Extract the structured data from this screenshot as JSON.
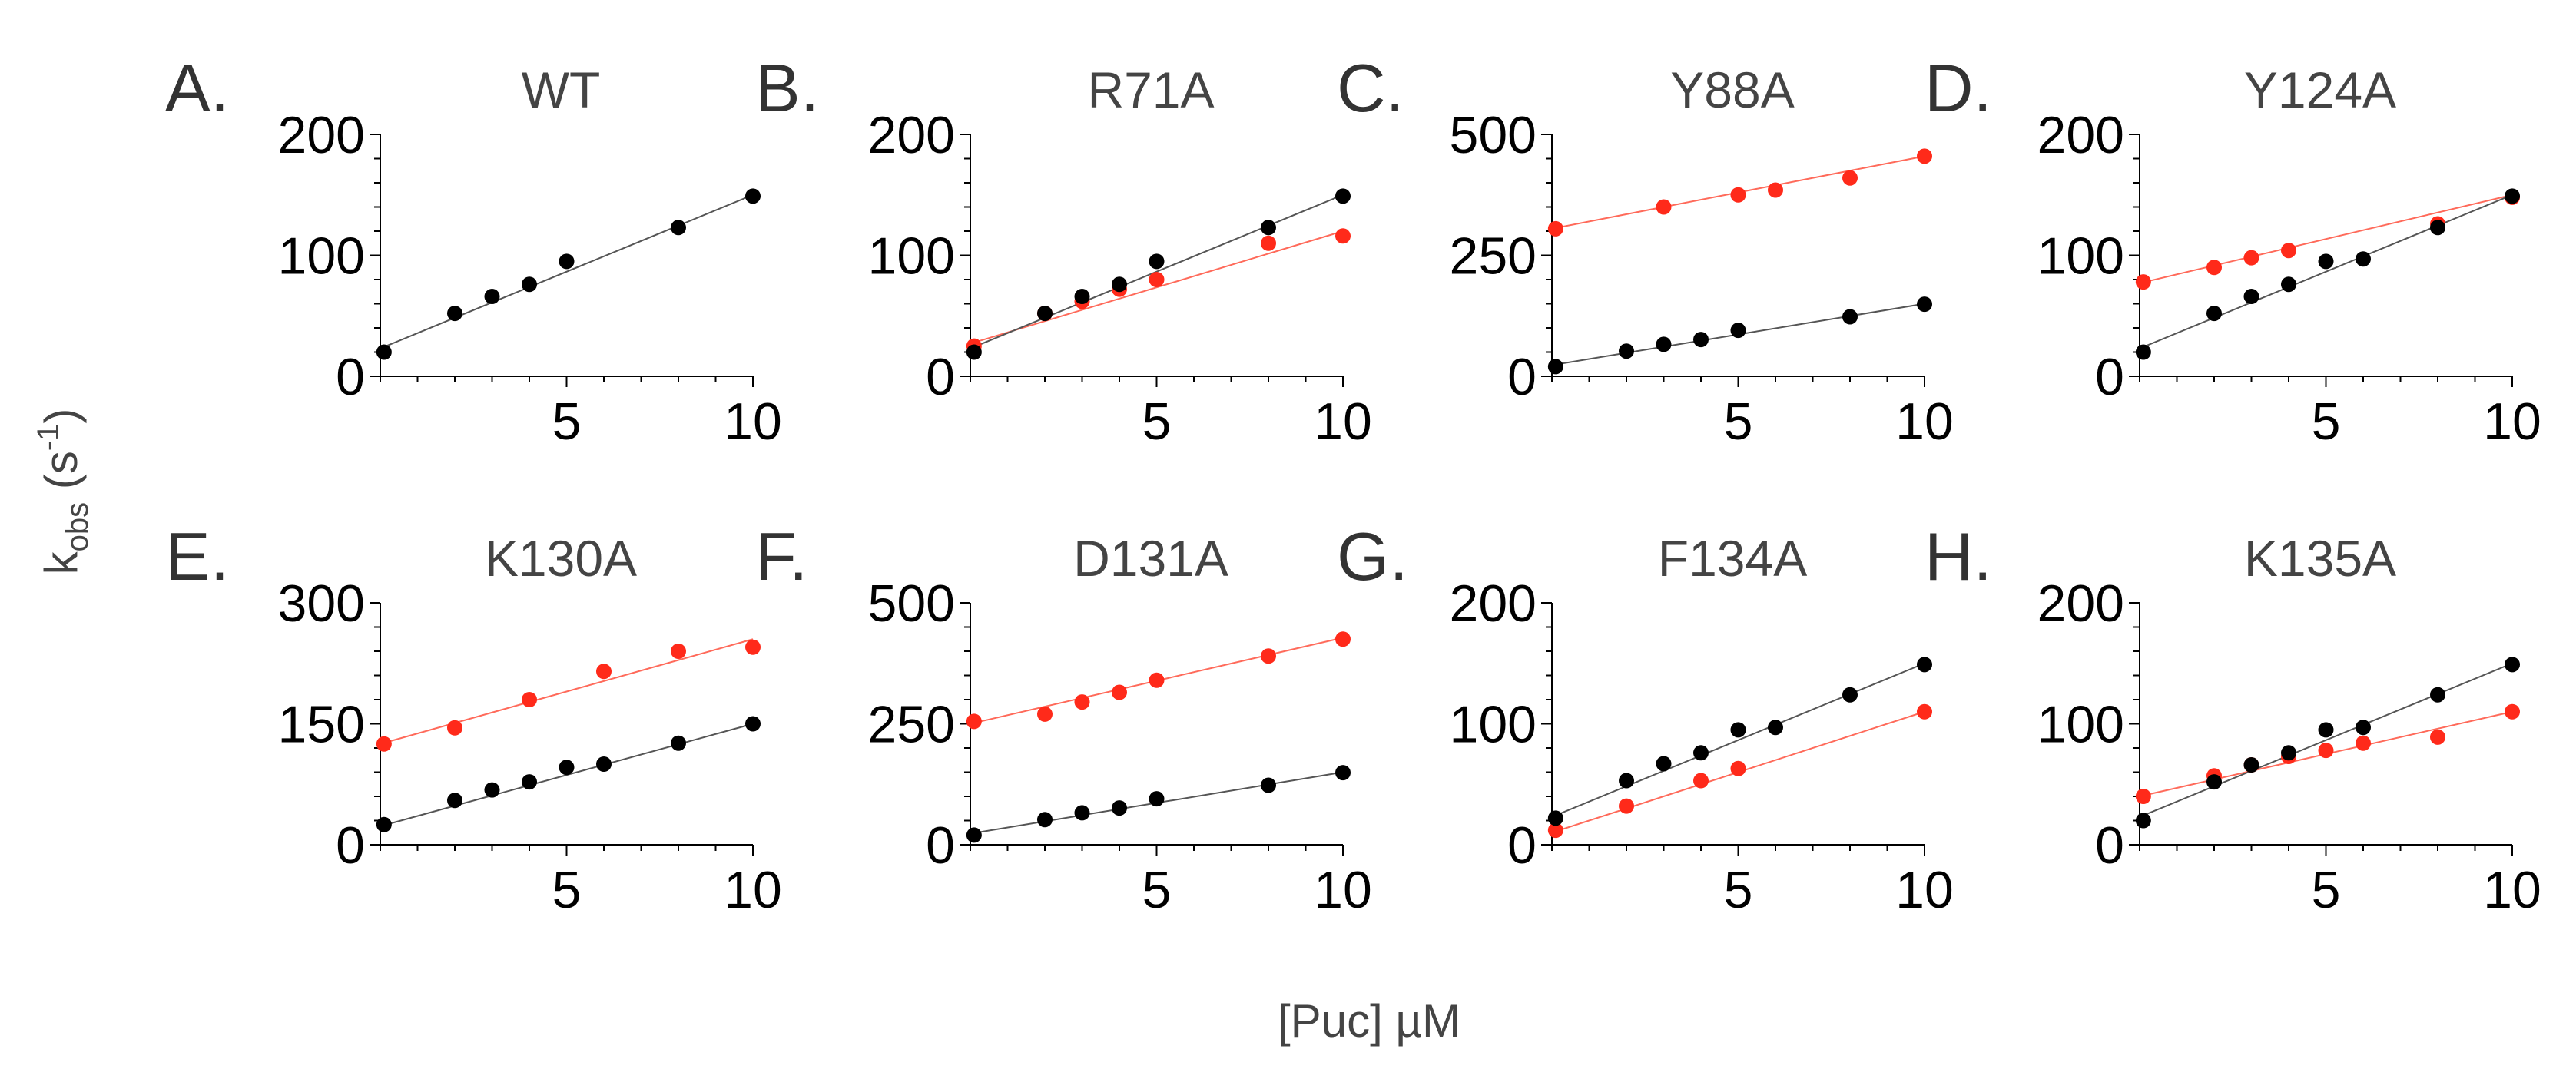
{
  "figure": {
    "ylabel_main": "k",
    "ylabel_sub": "obs",
    "ylabel_unit_open": " (s",
    "ylabel_sup": "-1",
    "ylabel_unit_close": ")",
    "xlabel": "[Puc] µM",
    "colors": {
      "wt": "#000000",
      "mutant": "#ff2a1a",
      "axis": "#000000",
      "wt_line": "#555555",
      "mutant_line": "#ff6a5a"
    }
  },
  "chart_data": [
    {
      "type": "scatter",
      "panel": "A.",
      "title": "WT",
      "xlim": [
        0,
        10
      ],
      "ylim": [
        0,
        200
      ],
      "yticks": [
        0,
        100,
        200
      ],
      "xticks": [
        5,
        10
      ],
      "series": [
        {
          "name": "WT",
          "color": "#000000",
          "points": [
            [
              0.1,
              20
            ],
            [
              2,
              52
            ],
            [
              3,
              66
            ],
            [
              4,
              76
            ],
            [
              5,
              95
            ],
            [
              8,
              123
            ],
            [
              10,
              149
            ]
          ],
          "fit": [
            [
              0,
              23
            ],
            [
              10,
              150
            ]
          ]
        }
      ]
    },
    {
      "type": "scatter",
      "panel": "B.",
      "title": "R71A",
      "xlim": [
        0,
        10
      ],
      "ylim": [
        0,
        200
      ],
      "yticks": [
        0,
        100,
        200
      ],
      "xticks": [
        5,
        10
      ],
      "series": [
        {
          "name": "WT",
          "color": "#000000",
          "points": [
            [
              0.1,
              20
            ],
            [
              2,
              52
            ],
            [
              3,
              66
            ],
            [
              4,
              76
            ],
            [
              5,
              95
            ],
            [
              8,
              123
            ],
            [
              10,
              149
            ]
          ],
          "fit": [
            [
              0,
              23
            ],
            [
              10,
              150
            ]
          ]
        },
        {
          "name": "R71A",
          "color": "#ff2a1a",
          "points": [
            [
              0.1,
              25
            ],
            [
              2,
              52
            ],
            [
              3,
              62
            ],
            [
              4,
              72
            ],
            [
              5,
              80
            ],
            [
              8,
              110
            ],
            [
              10,
              116
            ]
          ],
          "fit": [
            [
              0,
              27
            ],
            [
              10,
              120
            ]
          ]
        }
      ]
    },
    {
      "type": "scatter",
      "panel": "C.",
      "title": "Y88A",
      "xlim": [
        0,
        10
      ],
      "ylim": [
        0,
        500
      ],
      "yticks": [
        0,
        250,
        500
      ],
      "xticks": [
        5,
        10
      ],
      "series": [
        {
          "name": "WT",
          "color": "#000000",
          "points": [
            [
              0.1,
              20
            ],
            [
              2,
              52
            ],
            [
              3,
              66
            ],
            [
              4,
              76
            ],
            [
              5,
              95
            ],
            [
              8,
              123
            ],
            [
              10,
              149
            ]
          ],
          "fit": [
            [
              0,
              23
            ],
            [
              10,
              150
            ]
          ]
        },
        {
          "name": "Y88A",
          "color": "#ff2a1a",
          "points": [
            [
              0.1,
              305
            ],
            [
              3,
              350
            ],
            [
              5,
              375
            ],
            [
              6,
              385
            ],
            [
              8,
              410
            ],
            [
              10,
              455
            ]
          ],
          "fit": [
            [
              0,
              305
            ],
            [
              10,
              455
            ]
          ]
        }
      ]
    },
    {
      "type": "scatter",
      "panel": "D.",
      "title": "Y124A",
      "xlim": [
        0,
        10
      ],
      "ylim": [
        0,
        200
      ],
      "yticks": [
        0,
        100,
        200
      ],
      "xticks": [
        5,
        10
      ],
      "series": [
        {
          "name": "WT",
          "color": "#000000",
          "points": [
            [
              0.1,
              20
            ],
            [
              2,
              52
            ],
            [
              3,
              66
            ],
            [
              4,
              76
            ],
            [
              5,
              95
            ],
            [
              6,
              97
            ],
            [
              8,
              123
            ],
            [
              10,
              149
            ]
          ],
          "fit": [
            [
              0,
              23
            ],
            [
              10,
              150
            ]
          ]
        },
        {
          "name": "Y124A",
          "color": "#ff2a1a",
          "points": [
            [
              0.1,
              78
            ],
            [
              2,
              90
            ],
            [
              3,
              98
            ],
            [
              4,
              104
            ],
            [
              8,
              126
            ],
            [
              10,
              148
            ]
          ],
          "fit": [
            [
              0,
              77
            ],
            [
              10,
              150
            ]
          ]
        }
      ]
    },
    {
      "type": "scatter",
      "panel": "E.",
      "title": "K130A",
      "xlim": [
        0,
        10
      ],
      "ylim": [
        0,
        300
      ],
      "yticks": [
        0,
        150,
        300
      ],
      "xticks": [
        5,
        10
      ],
      "series": [
        {
          "name": "WT",
          "color": "#000000",
          "points": [
            [
              0.1,
              25
            ],
            [
              2,
              55
            ],
            [
              3,
              68
            ],
            [
              4,
              78
            ],
            [
              5,
              96
            ],
            [
              6,
              100
            ],
            [
              8,
              126
            ],
            [
              10,
              150
            ]
          ],
          "fit": [
            [
              0,
              23
            ],
            [
              10,
              150
            ]
          ]
        },
        {
          "name": "K130A",
          "color": "#ff2a1a",
          "points": [
            [
              0.1,
              125
            ],
            [
              2,
              145
            ],
            [
              4,
              180
            ],
            [
              6,
              215
            ],
            [
              8,
              240
            ],
            [
              10,
              245
            ]
          ],
          "fit": [
            [
              0,
              125
            ],
            [
              10,
              255
            ]
          ]
        }
      ]
    },
    {
      "type": "scatter",
      "panel": "F.",
      "title": "D131A",
      "xlim": [
        0,
        10
      ],
      "ylim": [
        0,
        500
      ],
      "yticks": [
        0,
        250,
        500
      ],
      "xticks": [
        5,
        10
      ],
      "series": [
        {
          "name": "WT",
          "color": "#000000",
          "points": [
            [
              0.1,
              20
            ],
            [
              2,
              52
            ],
            [
              3,
              66
            ],
            [
              4,
              76
            ],
            [
              5,
              95
            ],
            [
              8,
              123
            ],
            [
              10,
              149
            ]
          ],
          "fit": [
            [
              0,
              23
            ],
            [
              10,
              150
            ]
          ]
        },
        {
          "name": "D131A",
          "color": "#ff2a1a",
          "points": [
            [
              0.1,
              255
            ],
            [
              2,
              270
            ],
            [
              3,
              295
            ],
            [
              4,
              315
            ],
            [
              5,
              340
            ],
            [
              8,
              390
            ],
            [
              10,
              425
            ]
          ],
          "fit": [
            [
              0,
              250
            ],
            [
              10,
              428
            ]
          ]
        }
      ]
    },
    {
      "type": "scatter",
      "panel": "G.",
      "title": "F134A",
      "xlim": [
        0,
        10
      ],
      "ylim": [
        0,
        200
      ],
      "yticks": [
        0,
        100,
        200
      ],
      "xticks": [
        5,
        10
      ],
      "series": [
        {
          "name": "WT",
          "color": "#000000",
          "points": [
            [
              0.1,
              22
            ],
            [
              2,
              53
            ],
            [
              3,
              67
            ],
            [
              4,
              76
            ],
            [
              5,
              95
            ],
            [
              6,
              97
            ],
            [
              8,
              124
            ],
            [
              10,
              149
            ]
          ],
          "fit": [
            [
              0,
              23
            ],
            [
              10,
              150
            ]
          ]
        },
        {
          "name": "F134A",
          "color": "#ff2a1a",
          "points": [
            [
              0.1,
              12
            ],
            [
              2,
              32
            ],
            [
              4,
              53
            ],
            [
              5,
              63
            ],
            [
              10,
              110
            ]
          ],
          "fit": [
            [
              0,
              10
            ],
            [
              10,
              110
            ]
          ]
        }
      ]
    },
    {
      "type": "scatter",
      "panel": "H.",
      "title": "K135A",
      "xlim": [
        0,
        10
      ],
      "ylim": [
        0,
        200
      ],
      "yticks": [
        0,
        100,
        200
      ],
      "xticks": [
        5,
        10
      ],
      "series": [
        {
          "name": "WT",
          "color": "#000000",
          "points": [
            [
              0.1,
              20
            ],
            [
              2,
              52
            ],
            [
              3,
              66
            ],
            [
              4,
              76
            ],
            [
              5,
              95
            ],
            [
              6,
              97
            ],
            [
              8,
              124
            ],
            [
              10,
              149
            ]
          ],
          "fit": [
            [
              0,
              23
            ],
            [
              10,
              150
            ]
          ]
        },
        {
          "name": "K135A",
          "color": "#ff2a1a",
          "points": [
            [
              0.1,
              40
            ],
            [
              2,
              57
            ],
            [
              3,
              66
            ],
            [
              4,
              73
            ],
            [
              5,
              78
            ],
            [
              6,
              84
            ],
            [
              8,
              89
            ],
            [
              10,
              110
            ]
          ],
          "fit": [
            [
              0,
              40
            ],
            [
              10,
              110
            ]
          ]
        }
      ]
    }
  ]
}
